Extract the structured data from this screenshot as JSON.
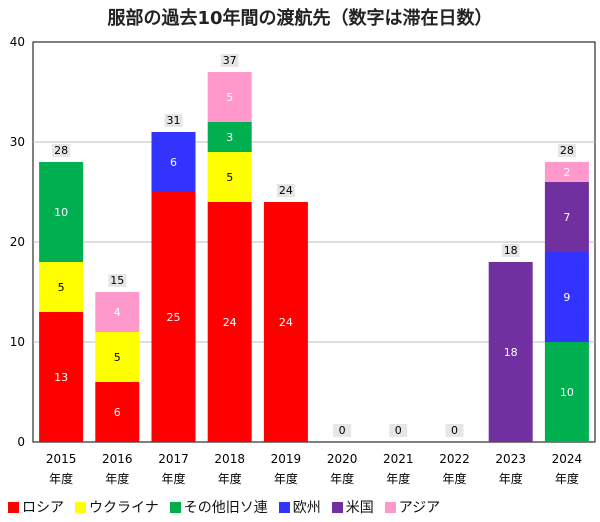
{
  "chart_data": {
    "type": "bar",
    "stacked": true,
    "title": "服部の過去10年間の渡航先（数字は滞在日数）",
    "categories": [
      [
        "2015",
        "年度"
      ],
      [
        "2016",
        "年度"
      ],
      [
        "2017",
        "年度"
      ],
      [
        "2018",
        "年度"
      ],
      [
        "2019",
        "年度"
      ],
      [
        "2020",
        "年度"
      ],
      [
        "2021",
        "年度"
      ],
      [
        "2022",
        "年度"
      ],
      [
        "2023",
        "年度"
      ],
      [
        "2024",
        "年度"
      ]
    ],
    "ylim": [
      0,
      40
    ],
    "yticks": [
      0,
      10,
      20,
      30,
      40
    ],
    "grid": true,
    "legend_position": "bottom",
    "series": [
      {
        "name": "ロシア",
        "color": "#ff0000",
        "values": [
          13,
          6,
          25,
          24,
          24,
          0,
          0,
          0,
          0,
          0
        ]
      },
      {
        "name": "ウクライナ",
        "color": "#ffff00",
        "values": [
          5,
          5,
          0,
          5,
          0,
          0,
          0,
          0,
          0,
          0
        ]
      },
      {
        "name": "その他旧ソ連",
        "color": "#00b050",
        "values": [
          10,
          0,
          0,
          3,
          0,
          0,
          0,
          0,
          0,
          10
        ]
      },
      {
        "name": "欧州",
        "color": "#3333ff",
        "values": [
          0,
          0,
          6,
          0,
          0,
          0,
          0,
          0,
          0,
          9
        ]
      },
      {
        "name": "米国",
        "color": "#7030a0",
        "values": [
          0,
          0,
          0,
          0,
          0,
          0,
          0,
          0,
          18,
          7
        ]
      },
      {
        "name": "アジア",
        "color": "#ff99cc",
        "values": [
          0,
          4,
          0,
          5,
          0,
          0,
          0,
          0,
          0,
          2
        ]
      }
    ],
    "totals": [
      28,
      15,
      31,
      37,
      24,
      0,
      0,
      0,
      18,
      28
    ]
  }
}
